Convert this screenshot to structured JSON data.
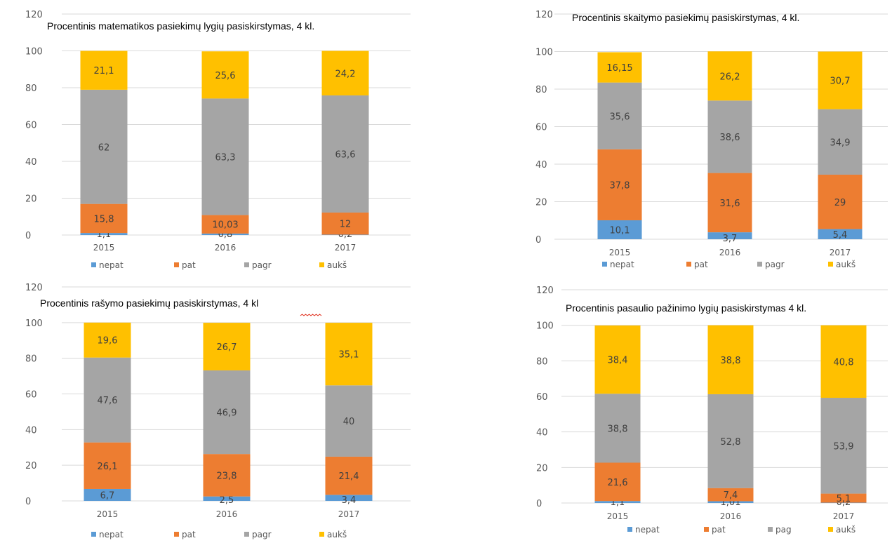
{
  "colors": {
    "nepat": "#5b9bd5",
    "pat": "#ed7d31",
    "pagr": "#a5a5a5",
    "auks": "#ffc000",
    "gridline": "#d9d9d9"
  },
  "chart_data": [
    {
      "type": "bar",
      "stacked": true,
      "title": "Procentinis matematikos pasiekimų lygių pasiskirstymas, 4 kl.",
      "categories": [
        "2015",
        "2016",
        "2017"
      ],
      "ylim": [
        0,
        120
      ],
      "yticks": [
        "0",
        "20",
        "40",
        "60",
        "80",
        "100",
        "120"
      ],
      "grid": true,
      "legend_position": "bottom",
      "series": [
        {
          "name": "nepat",
          "values": [
            1.1,
            0.8,
            0.2
          ],
          "labels": [
            "1,1",
            "0,8",
            "0,2"
          ]
        },
        {
          "name": "pat",
          "values": [
            15.8,
            10.03,
            12
          ],
          "labels": [
            "15,8",
            "10,03",
            "12"
          ]
        },
        {
          "name": "pagr",
          "values": [
            62,
            63.3,
            63.6
          ],
          "labels": [
            "62",
            "63,3",
            "63,6"
          ]
        },
        {
          "name": "aukš",
          "values": [
            21.1,
            25.6,
            24.2
          ],
          "labels": [
            "21,1",
            "25,6",
            "24,2"
          ]
        }
      ]
    },
    {
      "type": "bar",
      "stacked": true,
      "title": "Procentinis skaitymo pasiekimų pasiskirstymas, 4 kl.",
      "categories": [
        "2015",
        "2016",
        "2017"
      ],
      "ylim": [
        0,
        120
      ],
      "yticks": [
        "0",
        "20",
        "40",
        "60",
        "80",
        "100",
        "120"
      ],
      "grid": true,
      "legend_position": "bottom",
      "series": [
        {
          "name": "nepat",
          "values": [
            10.1,
            3.7,
            5.4
          ],
          "labels": [
            "10,1",
            "3,7",
            "5,4"
          ]
        },
        {
          "name": "pat",
          "values": [
            37.8,
            31.6,
            29
          ],
          "labels": [
            "37,8",
            "31,6",
            "29"
          ]
        },
        {
          "name": "pagr",
          "values": [
            35.6,
            38.6,
            34.9
          ],
          "labels": [
            "35,6",
            "38,6",
            "34,9"
          ]
        },
        {
          "name": "aukš",
          "values": [
            16.15,
            26.2,
            30.7
          ],
          "labels": [
            "16,15",
            "26,2",
            "30,7"
          ]
        }
      ]
    },
    {
      "type": "bar",
      "stacked": true,
      "title": "Procentinis rašymo pasiekimų pasiskirstymas, 4 kl",
      "categories": [
        "2015",
        "2016",
        "2017"
      ],
      "ylim": [
        0,
        120
      ],
      "yticks": [
        "0",
        "20",
        "40",
        "60",
        "80",
        "100",
        "120"
      ],
      "grid": true,
      "legend_position": "bottom",
      "series": [
        {
          "name": "nepat",
          "values": [
            6.7,
            2.5,
            3.4
          ],
          "labels": [
            "6,7",
            "2,5",
            "3,4"
          ]
        },
        {
          "name": "pat",
          "values": [
            26.1,
            23.8,
            21.4
          ],
          "labels": [
            "26,1",
            "23,8",
            "21,4"
          ]
        },
        {
          "name": "pagr",
          "values": [
            47.6,
            46.9,
            40
          ],
          "labels": [
            "47,6",
            "46,9",
            "40"
          ]
        },
        {
          "name": "aukš",
          "values": [
            19.6,
            26.7,
            35.1
          ],
          "labels": [
            "19,6",
            "26,7",
            "35,1"
          ]
        }
      ]
    },
    {
      "type": "bar",
      "stacked": true,
      "title": "Procentinis pasaulio pažinimo lygių pasiskirstymas 4 kl.",
      "categories": [
        "2015",
        "2016",
        "2017"
      ],
      "ylim": [
        0,
        120
      ],
      "yticks": [
        "0",
        "20",
        "40",
        "60",
        "80",
        "100",
        "120"
      ],
      "grid": true,
      "legend_position": "bottom",
      "series": [
        {
          "name": "nepat",
          "values": [
            1.1,
            1.01,
            0.2
          ],
          "labels": [
            "1,1",
            "1,01",
            "0,2"
          ]
        },
        {
          "name": "pat",
          "values": [
            21.6,
            7.4,
            5.1
          ],
          "labels": [
            "21,6",
            "7,4",
            "5,1"
          ]
        },
        {
          "name": "pag",
          "values": [
            38.8,
            52.8,
            53.9
          ],
          "labels": [
            "38,8",
            "52,8",
            "53,9"
          ]
        },
        {
          "name": "aukš",
          "values": [
            38.4,
            38.8,
            40.8
          ],
          "labels": [
            "38,4",
            "38,8",
            "40,8"
          ]
        }
      ]
    }
  ]
}
